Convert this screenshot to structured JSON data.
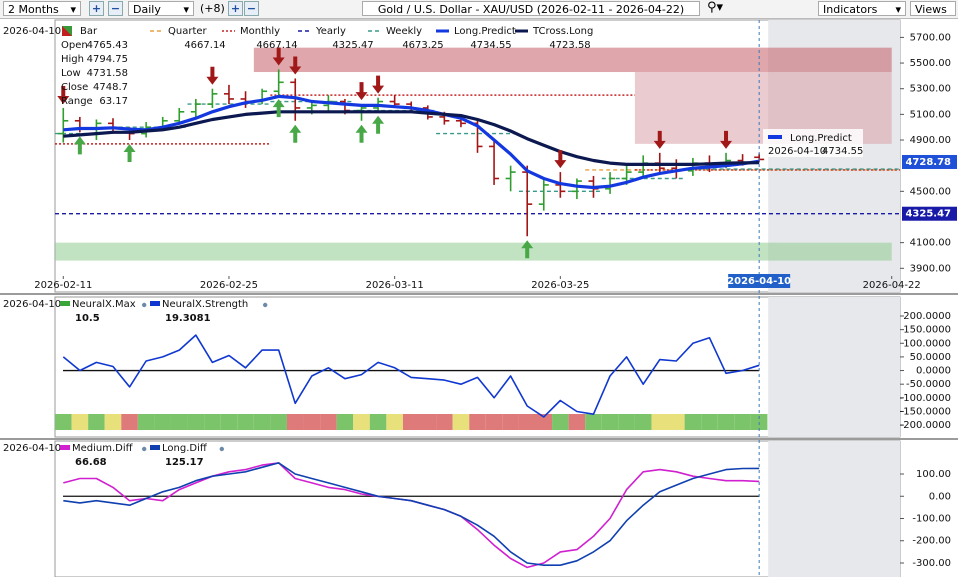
{
  "toolbar": {
    "range": "2 Months",
    "interval": "Daily",
    "extra": "(+8)",
    "title": "Gold / U.S. Dollar - XAU/USD (2026-02-11 - 2026-04-22)",
    "indicators": "Indicators",
    "views": "Views"
  },
  "chart_data": [
    {
      "type": "ohlc",
      "date": "2026-04-10",
      "bar_label": "Bar",
      "ohlc_labels": [
        "Open",
        "High",
        "Low",
        "Close",
        "Range"
      ],
      "ohlc_values": [
        4765.43,
        4794.75,
        4731.58,
        4748.7,
        63.17
      ],
      "x": [
        "2026-02-11",
        "2026-02-12",
        "2026-02-13",
        "2026-02-16",
        "2026-02-17",
        "2026-02-18",
        "2026-02-19",
        "2026-02-20",
        "2026-02-23",
        "2026-02-24",
        "2026-02-25",
        "2026-02-26",
        "2026-02-27",
        "2026-03-02",
        "2026-03-03",
        "2026-03-04",
        "2026-03-05",
        "2026-03-06",
        "2026-03-09",
        "2026-03-10",
        "2026-03-11",
        "2026-03-12",
        "2026-03-13",
        "2026-03-16",
        "2026-03-17",
        "2026-03-18",
        "2026-03-19",
        "2026-03-20",
        "2026-03-23",
        "2026-03-24",
        "2026-03-25",
        "2026-03-26",
        "2026-03-27",
        "2026-03-30",
        "2026-03-31",
        "2026-04-01",
        "2026-04-02",
        "2026-04-03",
        "2026-04-06",
        "2026-04-07",
        "2026-04-08",
        "2026-04-09",
        "2026-04-10"
      ],
      "open": [
        4950,
        5050,
        4990,
        5030,
        4990,
        4950,
        5000,
        5050,
        5120,
        5180,
        5260,
        5220,
        5200,
        5280,
        5350,
        5150,
        5170,
        5200,
        5130,
        5150,
        5200,
        5180,
        5150,
        5080,
        5050,
        5030,
        4850,
        4600,
        4650,
        4400,
        4550,
        4500,
        4580,
        4520,
        4600,
        4650,
        4720,
        4680,
        4660,
        4720,
        4700,
        4740,
        4765.43
      ],
      "high": [
        5150,
        5080,
        5060,
        5070,
        5000,
        5040,
        5080,
        5150,
        5220,
        5300,
        5330,
        5280,
        5300,
        5450,
        5380,
        5200,
        5250,
        5220,
        5180,
        5230,
        5250,
        5200,
        5170,
        5120,
        5100,
        5060,
        4900,
        4700,
        4700,
        4600,
        4650,
        4600,
        4620,
        4650,
        4700,
        4780,
        4800,
        4750,
        4760,
        4780,
        4800,
        4790,
        4794.75
      ],
      "low": [
        4880,
        4960,
        4900,
        4950,
        4900,
        4920,
        4980,
        5030,
        5080,
        5150,
        5180,
        5150,
        5180,
        5250,
        5050,
        5100,
        5120,
        5100,
        5050,
        5120,
        5150,
        5120,
        5060,
        5020,
        5000,
        4800,
        4550,
        4500,
        4150,
        4350,
        4450,
        4440,
        4450,
        4480,
        4550,
        4600,
        4640,
        4600,
        4620,
        4650,
        4680,
        4700,
        4731.58
      ],
      "close": [
        5050,
        4990,
        5030,
        4990,
        4950,
        5000,
        5050,
        5120,
        5180,
        5260,
        5220,
        5200,
        5280,
        5350,
        5150,
        5170,
        5200,
        5130,
        5150,
        5200,
        5180,
        5150,
        5080,
        5050,
        5030,
        4850,
        4600,
        4650,
        4400,
        4550,
        4500,
        4580,
        4520,
        4600,
        4650,
        4720,
        4680,
        4660,
        4720,
        4700,
        4740,
        4720,
        4748.7
      ],
      "up_color": "#2e9e2e",
      "down_color": "#a31515",
      "series": [
        {
          "name": "Quarter",
          "color": "#e8a040",
          "kind": "step",
          "dash": "4 3",
          "legend_value": 4667.14,
          "x": [
            "2026-03-27"
          ],
          "values": [
            4667.14
          ]
        },
        {
          "name": "Monthly",
          "color": "#c82020",
          "kind": "step",
          "dash": "2 2",
          "legend_value": 4667.14,
          "x": [
            "2026-02-11",
            "2026-03-02",
            "2026-04-01"
          ],
          "values": [
            4870,
            5250,
            4667.14
          ]
        },
        {
          "name": "Yearly",
          "color": "#1a1aa8",
          "kind": "step",
          "dash": "4 3",
          "legend_value": 4325.47,
          "x": [
            "2026-02-11"
          ],
          "values": [
            4325.47
          ]
        },
        {
          "name": "Weekly",
          "color": "#3a9a8a",
          "kind": "step",
          "dash": "4 3",
          "legend_value": 4673.25,
          "x": [
            "2026-02-11",
            "2026-02-16",
            "2026-02-23",
            "2026-03-02",
            "2026-03-09",
            "2026-03-16",
            "2026-03-23",
            "2026-03-30",
            "2026-04-06"
          ],
          "values": [
            4950,
            5000,
            5180,
            5200,
            5130,
            4950,
            4500,
            4600,
            4673.25
          ]
        },
        {
          "name": "Long.Predict",
          "color": "#1438e0",
          "kind": "line",
          "legend_value": 4734.55,
          "values": [
            4980,
            4990,
            4990,
            4995,
            4985,
            4980,
            5000,
            5030,
            5070,
            5120,
            5160,
            5190,
            5210,
            5240,
            5230,
            5200,
            5190,
            5180,
            5170,
            5170,
            5160,
            5150,
            5130,
            5100,
            5070,
            5010,
            4900,
            4790,
            4660,
            4600,
            4560,
            4540,
            4530,
            4540,
            4570,
            4610,
            4640,
            4660,
            4680,
            4690,
            4700,
            4715,
            4734.55
          ]
        },
        {
          "name": "TCross.Long",
          "color": "#0c1850",
          "kind": "line",
          "legend_value": 4723.58,
          "values": [
            4930,
            4940,
            4950,
            4960,
            4960,
            4970,
            4980,
            5000,
            5030,
            5060,
            5080,
            5100,
            5110,
            5120,
            5120,
            5120,
            5120,
            5120,
            5120,
            5120,
            5120,
            5120,
            5110,
            5100,
            5090,
            5060,
            5020,
            4970,
            4910,
            4860,
            4810,
            4770,
            4740,
            4720,
            4710,
            4710,
            4710,
            4710,
            4710,
            4715,
            4720,
            4722,
            4723.58
          ]
        }
      ],
      "zones": [
        {
          "from": "2026-02-27",
          "to": "2026-04-22",
          "low": 5430,
          "high": 5620,
          "color": "#c45c68"
        },
        {
          "from": "2026-04-01",
          "to": "2026-04-22",
          "low": 4870,
          "high": 5430,
          "color": "#d9a0a8"
        },
        {
          "from": "2026-02-11",
          "to": "2026-04-22",
          "low": 3960,
          "high": 4100,
          "color": "#8fcc8f"
        }
      ],
      "signals": {
        "up": [
          "2026-02-12",
          "2026-02-17",
          "2026-03-02",
          "2026-03-03",
          "2026-03-09",
          "2026-03-10",
          "2026-03-23"
        ],
        "down": [
          "2026-02-11",
          "2026-02-24",
          "2026-03-02",
          "2026-03-03",
          "2026-03-09",
          "2026-03-10",
          "2026-03-25",
          "2026-04-02",
          "2026-04-08"
        ]
      },
      "xlim": [
        "2026-02-11",
        "2026-04-22"
      ],
      "xticks": [
        "2026-02-11",
        "2026-02-25",
        "2026-03-11",
        "2026-03-25",
        "2026-04-22"
      ],
      "cursor": "2026-04-10",
      "ylim": [
        3840,
        5820
      ],
      "yticks": [
        {
          "value": 3900,
          "label": "3900.00"
        },
        {
          "value": 4100,
          "label": "4100.00"
        },
        {
          "value": 4500,
          "label": "4500.00"
        },
        {
          "value": 4900,
          "label": "4900.00"
        },
        {
          "value": 5100,
          "label": "5100.00"
        },
        {
          "value": 5300,
          "label": "5300.00"
        },
        {
          "value": 5500,
          "label": "5500.00"
        },
        {
          "value": 5700,
          "label": "5700.00"
        }
      ],
      "markers": [
        {
          "value": 4728.78,
          "color": "#1f50d8"
        },
        {
          "value": 4325.47,
          "color": "#1a1aa8"
        }
      ],
      "tooltip": {
        "name": "Long.Predict",
        "x": "2026-04-10",
        "value": 4734.55
      }
    },
    {
      "type": "line",
      "date": "2026-04-10",
      "series": [
        {
          "name": "NeuralX.Max",
          "color": "#3aa63a",
          "legend_value": 10.5,
          "band_colors": [
            "#7cc46a",
            "#e8e07a",
            "#7cc46a",
            "#e8e07a",
            "#de7a7a",
            "#7cc46a",
            "#7cc46a",
            "#7cc46a",
            "#7cc46a",
            "#7cc46a",
            "#7cc46a",
            "#7cc46a",
            "#7cc46a",
            "#7cc46a",
            "#de7a7a",
            "#de7a7a",
            "#de7a7a",
            "#7cc46a",
            "#e8e07a",
            "#7cc46a",
            "#e8e07a",
            "#de7a7a",
            "#de7a7a",
            "#de7a7a",
            "#e8e07a",
            "#de7a7a",
            "#de7a7a",
            "#de7a7a",
            "#de7a7a",
            "#de7a7a",
            "#7cc46a",
            "#de7a7a",
            "#7cc46a",
            "#7cc46a",
            "#7cc46a",
            "#7cc46a",
            "#e8e07a",
            "#e8e07a",
            "#7cc46a",
            "#7cc46a",
            "#7cc46a",
            "#7cc46a",
            "#7cc46a"
          ]
        },
        {
          "name": "NeuralX.Strength",
          "color": "#1038d0",
          "legend_value": 19.3081,
          "values": [
            50,
            0,
            30,
            15,
            -60,
            35,
            50,
            75,
            130,
            30,
            55,
            10,
            75,
            75,
            -120,
            -20,
            10,
            -30,
            -15,
            30,
            10,
            -25,
            -30,
            -35,
            -50,
            -25,
            -100,
            -20,
            -130,
            -170,
            -110,
            -150,
            -160,
            -20,
            50,
            -50,
            40,
            35,
            100,
            120,
            -10,
            0,
            19.3081
          ]
        }
      ],
      "ylim": [
        -218,
        222
      ],
      "yticks": [
        {
          "value": 200,
          "label": "200.0000"
        },
        {
          "value": 150,
          "label": "150.0000"
        },
        {
          "value": 100,
          "label": "100.0000"
        },
        {
          "value": 50,
          "label": "50.0000"
        },
        {
          "value": 0,
          "label": "0.0000"
        },
        {
          "value": -50,
          "label": "-50.0000"
        },
        {
          "value": -100,
          "label": "-100.0000"
        },
        {
          "value": -150,
          "label": "-150.0000"
        },
        {
          "value": -200,
          "label": "-200.0000"
        }
      ]
    },
    {
      "type": "line",
      "date": "2026-04-10",
      "series": [
        {
          "name": "Medium.Diff",
          "color": "#d020d0",
          "legend_value": 66.68,
          "values": [
            60,
            80,
            80,
            40,
            -20,
            -10,
            -20,
            30,
            60,
            90,
            110,
            120,
            140,
            150,
            80,
            60,
            40,
            30,
            10,
            0,
            -10,
            -20,
            -40,
            -60,
            -90,
            -150,
            -220,
            -280,
            -320,
            -300,
            -250,
            -240,
            -180,
            -100,
            30,
            110,
            120,
            110,
            90,
            80,
            70,
            70,
            66.68
          ]
        },
        {
          "name": "Long.Diff",
          "color": "#1040b0",
          "legend_value": 125.17,
          "values": [
            -20,
            -30,
            -20,
            -30,
            -40,
            -10,
            20,
            40,
            70,
            90,
            100,
            110,
            130,
            150,
            100,
            80,
            60,
            40,
            20,
            0,
            -10,
            -20,
            -40,
            -60,
            -90,
            -130,
            -180,
            -250,
            -300,
            -310,
            -310,
            -290,
            -250,
            -200,
            -110,
            -40,
            20,
            50,
            80,
            100,
            120,
            125,
            125.17
          ]
        }
      ],
      "ylim": [
        -363,
        199
      ],
      "yticks": [
        {
          "value": 100,
          "label": "100.00"
        },
        {
          "value": 0,
          "label": "0.00"
        },
        {
          "value": -100,
          "label": "-100.00"
        },
        {
          "value": -200,
          "label": "-200.00"
        },
        {
          "value": -300,
          "label": "-300.00"
        }
      ]
    }
  ]
}
